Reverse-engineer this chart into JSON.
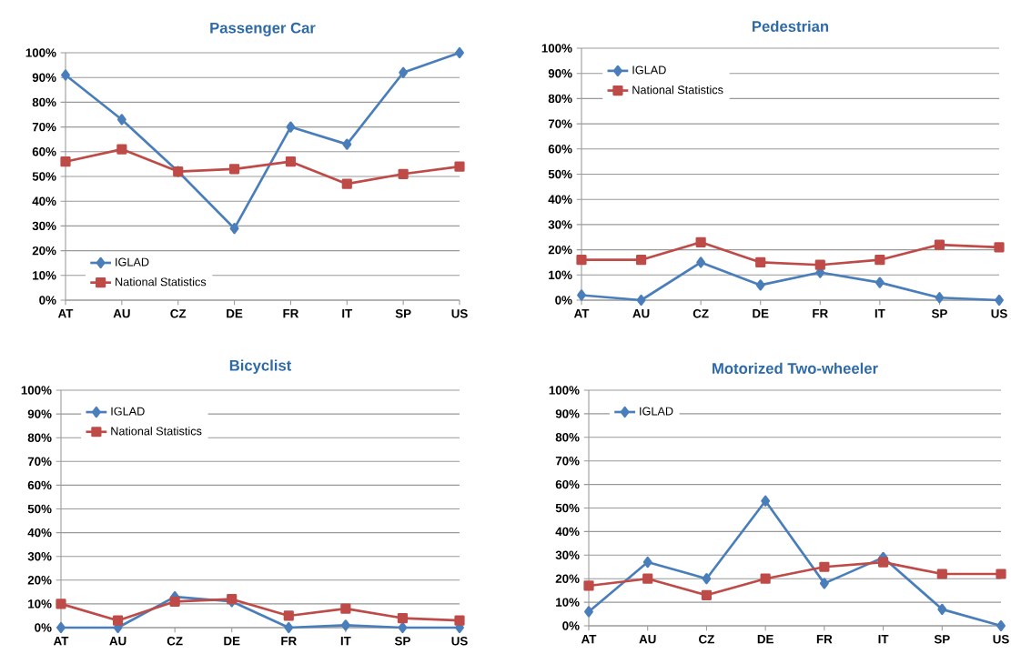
{
  "chart_data": [
    {
      "type": "line",
      "title": "Passenger Car",
      "categories": [
        "AT",
        "AU",
        "CZ",
        "DE",
        "FR",
        "IT",
        "SP",
        "US"
      ],
      "ylim": [
        0,
        100
      ],
      "yticks": [
        {
          "value": 0,
          "label": "0%"
        },
        {
          "value": 10,
          "label": "10%"
        },
        {
          "value": 20,
          "label": "20%"
        },
        {
          "value": 30,
          "label": "30%"
        },
        {
          "value": 40,
          "label": "40%"
        },
        {
          "value": 50,
          "label": "50%"
        },
        {
          "value": 60,
          "label": "60%"
        },
        {
          "value": 70,
          "label": "70%"
        },
        {
          "value": 80,
          "label": "80%"
        },
        {
          "value": 90,
          "label": "90%"
        },
        {
          "value": 100,
          "label": "100%"
        }
      ],
      "grid": "y",
      "legend": "bottom left",
      "series": [
        {
          "name": "IGLAD",
          "color": "#4a7ebb",
          "marker": "diamond",
          "values": [
            91,
            73,
            52,
            29,
            70,
            63,
            92,
            100
          ]
        },
        {
          "name": "National Statistics",
          "color": "#be4b48",
          "marker": "square",
          "values": [
            56,
            61,
            52,
            53,
            56,
            47,
            51,
            54
          ]
        }
      ]
    },
    {
      "type": "line",
      "title": "Pedestrian",
      "categories": [
        "AT",
        "AU",
        "CZ",
        "DE",
        "FR",
        "IT",
        "SP",
        "US"
      ],
      "ylim": [
        0,
        100
      ],
      "yticks": [
        {
          "value": 0,
          "label": "0%"
        },
        {
          "value": 10,
          "label": "10%"
        },
        {
          "value": 20,
          "label": "20%"
        },
        {
          "value": 30,
          "label": "30%"
        },
        {
          "value": 40,
          "label": "40%"
        },
        {
          "value": 50,
          "label": "50%"
        },
        {
          "value": 60,
          "label": "60%"
        },
        {
          "value": 70,
          "label": "70%"
        },
        {
          "value": 80,
          "label": "80%"
        },
        {
          "value": 90,
          "label": "90%"
        },
        {
          "value": 100,
          "label": "100%"
        }
      ],
      "grid": "y",
      "legend": "top left",
      "series": [
        {
          "name": "IGLAD",
          "color": "#4a7ebb",
          "marker": "diamond",
          "values": [
            2,
            0,
            15,
            6,
            11,
            7,
            1,
            0
          ]
        },
        {
          "name": "National Statistics",
          "color": "#be4b48",
          "marker": "square",
          "values": [
            16,
            16,
            23,
            15,
            14,
            16,
            22,
            21
          ]
        }
      ]
    },
    {
      "type": "line",
      "title": "Bicyclist",
      "categories": [
        "AT",
        "AU",
        "CZ",
        "DE",
        "FR",
        "IT",
        "SP",
        "US"
      ],
      "ylim": [
        0,
        100
      ],
      "yticks": [
        {
          "value": 0,
          "label": "0%"
        },
        {
          "value": 10,
          "label": "10%"
        },
        {
          "value": 20,
          "label": "20%"
        },
        {
          "value": 30,
          "label": "30%"
        },
        {
          "value": 40,
          "label": "40%"
        },
        {
          "value": 50,
          "label": "50%"
        },
        {
          "value": 60,
          "label": "60%"
        },
        {
          "value": 70,
          "label": "70%"
        },
        {
          "value": 80,
          "label": "80%"
        },
        {
          "value": 90,
          "label": "90%"
        },
        {
          "value": 100,
          "label": "100%"
        }
      ],
      "grid": "y",
      "legend": "top left",
      "series": [
        {
          "name": "IGLAD",
          "color": "#4a7ebb",
          "marker": "diamond",
          "values": [
            0,
            0,
            13,
            11,
            0,
            1,
            0,
            0
          ]
        },
        {
          "name": "National Statistics",
          "color": "#be4b48",
          "marker": "square",
          "values": [
            10,
            3,
            11,
            12,
            5,
            8,
            4,
            3
          ]
        }
      ]
    },
    {
      "type": "line",
      "title": "Motorized Two-wheeler",
      "categories": [
        "AT",
        "AU",
        "CZ",
        "DE",
        "FR",
        "IT",
        "SP",
        "US"
      ],
      "ylim": [
        0,
        100
      ],
      "yticks": [
        {
          "value": 0,
          "label": "0%"
        },
        {
          "value": 10,
          "label": "10%"
        },
        {
          "value": 20,
          "label": "20%"
        },
        {
          "value": 30,
          "label": "30%"
        },
        {
          "value": 40,
          "label": "40%"
        },
        {
          "value": 50,
          "label": "50%"
        },
        {
          "value": 60,
          "label": "60%"
        },
        {
          "value": 70,
          "label": "70%"
        },
        {
          "value": 80,
          "label": "80%"
        },
        {
          "value": 90,
          "label": "90%"
        },
        {
          "value": 100,
          "label": "100%"
        }
      ],
      "grid": "y",
      "legend": "top left",
      "series": [
        {
          "name": "IGLAD",
          "color": "#4a7ebb",
          "marker": "diamond",
          "values": [
            6,
            27,
            20,
            53,
            18,
            29,
            7,
            0
          ]
        },
        {
          "color": "#be4b48",
          "marker": "square",
          "values": [
            17,
            20,
            13,
            20,
            25,
            27,
            22,
            22
          ]
        }
      ]
    }
  ]
}
